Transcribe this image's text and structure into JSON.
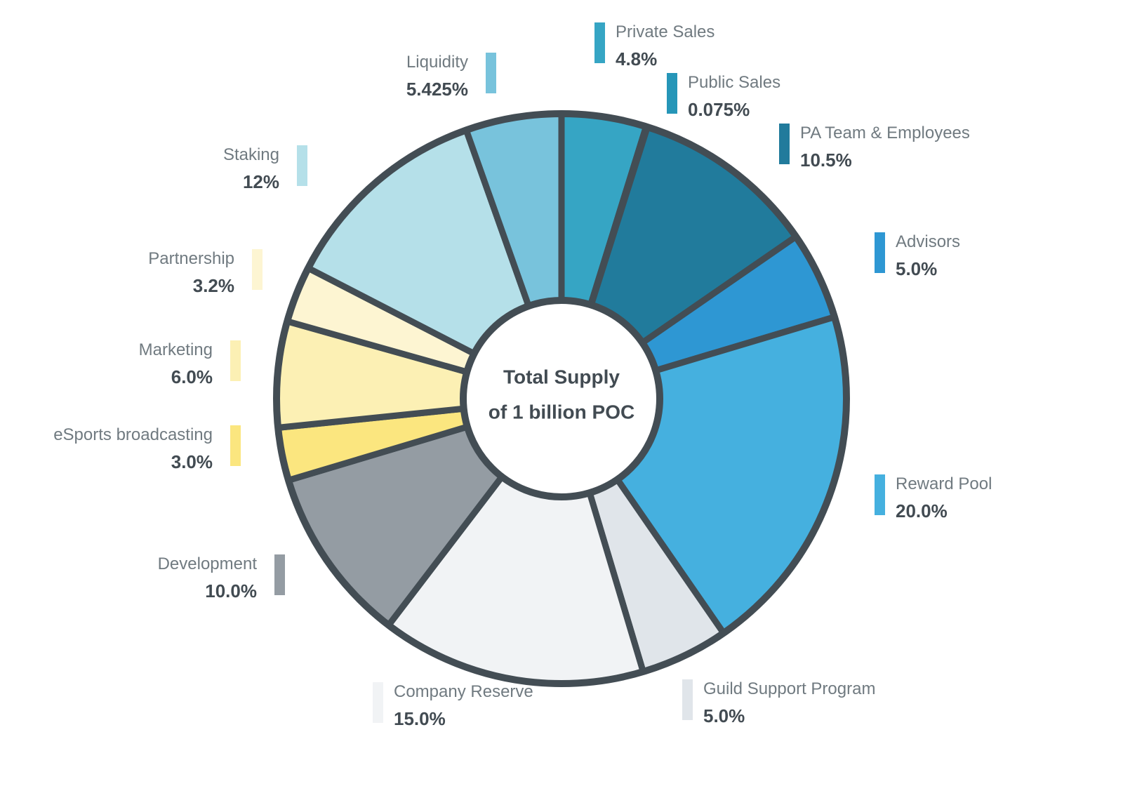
{
  "chart_data": {
    "type": "pie",
    "center_label": [
      "Total Supply",
      "of 1 billion POC"
    ],
    "slices": [
      {
        "label": "Private Sales",
        "value": 4.8,
        "display": "4.8%",
        "color": "#36a5c4"
      },
      {
        "label": "Public Sales",
        "value": 0.075,
        "display": "0.075%",
        "color": "#2696b8"
      },
      {
        "label": "PA Team & Employees",
        "value": 10.5,
        "display": "10.5%",
        "color": "#217b9c"
      },
      {
        "label": "Advisors",
        "value": 5.0,
        "display": "5.0%",
        "color": "#2e97d3"
      },
      {
        "label": "Reward Pool",
        "value": 20.0,
        "display": "20.0%",
        "color": "#45b0df"
      },
      {
        "label": "Guild Support Program",
        "value": 5.0,
        "display": "5.0%",
        "color": "#e0e5ea"
      },
      {
        "label": "Company Reserve",
        "value": 15.0,
        "display": "15.0%",
        "color": "#f1f3f5"
      },
      {
        "label": "Development",
        "value": 10.0,
        "display": "10.0%",
        "color": "#949ca3"
      },
      {
        "label": "eSports broadcasting",
        "value": 3.0,
        "display": "3.0%",
        "color": "#fbe67f"
      },
      {
        "label": "Marketing",
        "value": 6.0,
        "display": "6.0%",
        "color": "#fcf0b4"
      },
      {
        "label": "Partnership",
        "value": 3.2,
        "display": "3.2%",
        "color": "#fdf5d2"
      },
      {
        "label": "Staking",
        "value": 12.0,
        "display": "12%",
        "color": "#b5e0e9"
      },
      {
        "label": "Liquidity",
        "value": 5.425,
        "display": "5.425%",
        "color": "#78c3dc"
      }
    ],
    "legend_placement": "around"
  }
}
